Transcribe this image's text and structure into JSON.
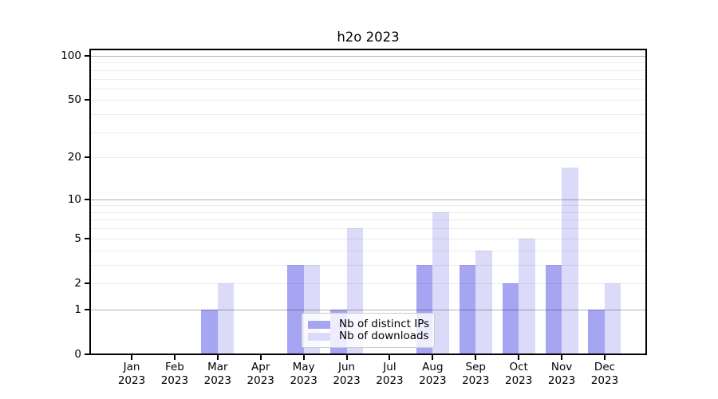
{
  "title": "h2o 2023",
  "legend": {
    "items": [
      {
        "label": "Nb of distinct IPs",
        "color": "#a5a5f2"
      },
      {
        "label": "Nb of downloads",
        "color": "#dbdbf9"
      }
    ]
  },
  "chart_data": {
    "type": "bar",
    "title": "h2o 2023",
    "categories": [
      "Jan",
      "Feb",
      "Mar",
      "Apr",
      "May",
      "Jun",
      "Jul",
      "Aug",
      "Sep",
      "Oct",
      "Nov",
      "Dec"
    ],
    "year_label": "2023",
    "series": [
      {
        "name": "Nb of distinct IPs",
        "color": "#a5a5f2",
        "values": [
          0,
          0,
          1,
          0,
          3,
          1,
          0,
          3,
          3,
          2,
          3,
          1
        ]
      },
      {
        "name": "Nb of downloads",
        "color": "#dbdbf9",
        "values": [
          0,
          0,
          2,
          0,
          3,
          6,
          0,
          8,
          4,
          5,
          17,
          2
        ]
      }
    ],
    "xlabel": "",
    "ylabel": "",
    "yscale": "log1p",
    "ylim": [
      0,
      100
    ],
    "yticks": [
      0,
      1,
      2,
      5,
      10,
      20,
      50,
      100
    ],
    "major_grid_values": [
      1,
      10,
      100
    ],
    "minor_grid_values": [
      2,
      3,
      4,
      5,
      6,
      7,
      8,
      9,
      20,
      30,
      40,
      50,
      60,
      70,
      80,
      90
    ],
    "grid": true,
    "legend_position": "inside-lower-center"
  }
}
